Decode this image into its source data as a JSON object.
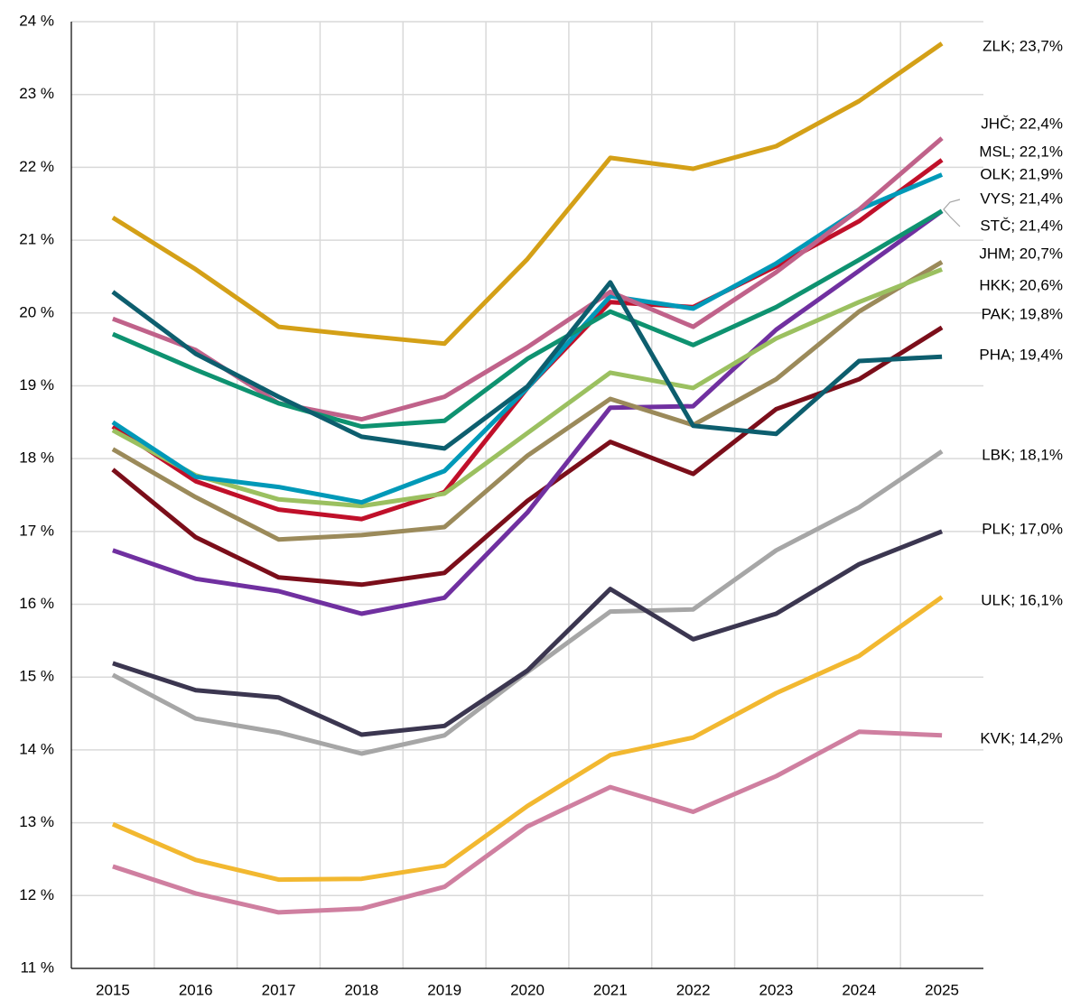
{
  "chart_data": {
    "type": "line",
    "categories": [
      "2015",
      "2016",
      "2017",
      "2018",
      "2019",
      "2020",
      "2021",
      "2022",
      "2023",
      "2024",
      "2025"
    ],
    "ylim": [
      11,
      24
    ],
    "yticks": [
      {
        "value": 11,
        "label": "11 %"
      },
      {
        "value": 12,
        "label": "12 %"
      },
      {
        "value": 13,
        "label": "13 %"
      },
      {
        "value": 14,
        "label": "14 %"
      },
      {
        "value": 15,
        "label": "15 %"
      },
      {
        "value": 16,
        "label": "16 %"
      },
      {
        "value": 17,
        "label": "17 %"
      },
      {
        "value": 18,
        "label": "18 %"
      },
      {
        "value": 19,
        "label": "19 %"
      },
      {
        "value": 20,
        "label": "20 %"
      },
      {
        "value": 21,
        "label": "21 %"
      },
      {
        "value": 22,
        "label": "22 %"
      },
      {
        "value": 23,
        "label": "23 %"
      },
      {
        "value": 24,
        "label": "24 %"
      }
    ],
    "grid": true,
    "series": [
      {
        "name": "LBK",
        "color": "#a6a6a6",
        "end_label": "LBK; 18,1%",
        "values": [
          15.03,
          14.43,
          14.24,
          13.95,
          14.2,
          15.07,
          15.9,
          15.93,
          16.74,
          17.33,
          18.1
        ]
      },
      {
        "name": "PLK",
        "color": "#3b3650",
        "end_label": "PLK; 17,0%",
        "values": [
          15.19,
          14.82,
          14.72,
          14.21,
          14.33,
          15.09,
          16.21,
          15.52,
          15.87,
          16.55,
          17.0
        ]
      },
      {
        "name": "ULK",
        "color": "#f2b830",
        "end_label": "ULK; 16,1%",
        "values": [
          12.98,
          12.49,
          12.22,
          12.23,
          12.41,
          13.23,
          13.93,
          14.17,
          14.78,
          15.29,
          16.1
        ]
      },
      {
        "name": "KVK",
        "color": "#cf7fa0",
        "end_label": "KVK; 14,2%",
        "values": [
          12.4,
          12.03,
          11.77,
          11.82,
          12.12,
          12.95,
          13.49,
          13.15,
          13.64,
          14.25,
          14.2
        ]
      },
      {
        "name": "PAK",
        "color": "#7b0e1a",
        "end_label": "PAK; 19,8%",
        "values": [
          17.85,
          16.92,
          16.37,
          16.27,
          16.43,
          17.42,
          18.23,
          17.79,
          18.68,
          19.09,
          19.8
        ]
      },
      {
        "name": "VYS",
        "color": "#7030a0",
        "end_label": "VYS; 21,4%",
        "values": [
          16.74,
          16.35,
          16.18,
          15.87,
          16.09,
          17.26,
          18.7,
          18.72,
          19.77,
          20.58,
          21.4
        ]
      },
      {
        "name": "JHM",
        "color": "#9b8a5a",
        "end_label": "JHM; 20,7%",
        "values": [
          18.13,
          17.47,
          16.89,
          16.95,
          17.06,
          18.04,
          18.82,
          18.46,
          19.09,
          20.02,
          20.7
        ]
      },
      {
        "name": "MSL",
        "color": "#c0102a",
        "end_label": "MSL; 22,1%",
        "values": [
          18.44,
          17.69,
          17.3,
          17.17,
          17.54,
          18.97,
          20.15,
          20.08,
          20.64,
          21.26,
          22.1
        ]
      },
      {
        "name": "HKK",
        "color": "#9bc060",
        "end_label": "HKK; 20,6%",
        "values": [
          18.39,
          17.77,
          17.44,
          17.35,
          17.52,
          18.35,
          19.18,
          18.97,
          19.65,
          20.15,
          20.6
        ]
      },
      {
        "name": "OLK",
        "color": "#0099b8",
        "end_label": "OLK; 21,9%",
        "values": [
          18.5,
          17.75,
          17.61,
          17.4,
          17.83,
          18.97,
          20.23,
          20.06,
          20.68,
          21.42,
          21.9
        ]
      },
      {
        "name": "JHČ",
        "color": "#c0628a",
        "end_label": "JHČ; 22,4%",
        "values": [
          19.92,
          19.49,
          18.76,
          18.54,
          18.85,
          19.53,
          20.29,
          19.81,
          20.56,
          21.42,
          22.4
        ]
      },
      {
        "name": "STČ",
        "color": "#0e9270",
        "end_label": "STČ; 21,4%",
        "values": [
          19.71,
          19.22,
          18.76,
          18.44,
          18.52,
          19.37,
          20.02,
          19.56,
          20.08,
          20.73,
          21.4
        ]
      },
      {
        "name": "PHA",
        "color": "#0d5e6e",
        "end_label": "PHA; 19,4%",
        "values": [
          20.29,
          19.44,
          18.85,
          18.3,
          18.14,
          18.99,
          20.42,
          18.45,
          18.34,
          19.34,
          19.4
        ]
      },
      {
        "name": "ZLK",
        "color": "#d4a017",
        "end_label": "ZLK; 23,7%",
        "values": [
          21.31,
          20.6,
          19.81,
          19.69,
          19.58,
          20.74,
          22.13,
          21.98,
          22.29,
          22.91,
          23.7
        ]
      }
    ]
  }
}
